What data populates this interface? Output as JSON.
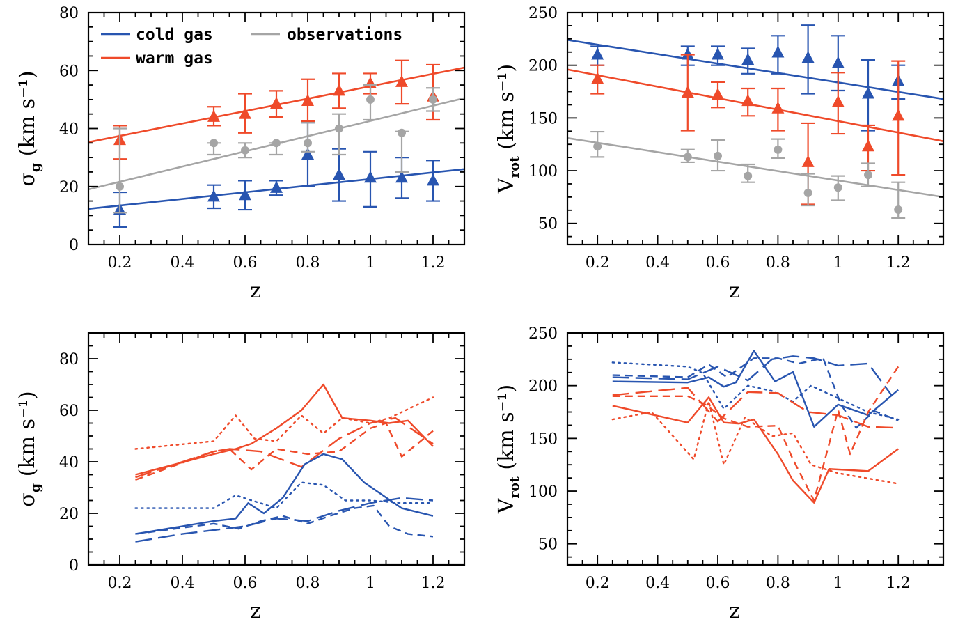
{
  "colors": {
    "cold": "#2855b0",
    "warm": "#ef4a2a",
    "obs": "#a5a5a5"
  },
  "legend": {
    "cold": "cold gas",
    "warm": "warm gas",
    "obs": "observations"
  },
  "chart_data": [
    {
      "id": "top-left",
      "type": "scatter",
      "xlabel": "z",
      "ylabel": "σ_g (km s⁻¹)",
      "xlim": [
        0.1,
        1.3
      ],
      "ylim": [
        0,
        80
      ],
      "xticks": [
        0.2,
        0.4,
        0.6,
        0.8,
        1.0,
        1.2
      ],
      "xticklabels": [
        "0.2",
        "0.4",
        "0.6",
        "0.8",
        "1",
        "1.2"
      ],
      "yticks": [
        0,
        20,
        40,
        60,
        80
      ],
      "yticklabels": [
        "0",
        "20",
        "40",
        "60",
        "80"
      ],
      "legend": true,
      "series": [
        {
          "name": "cold gas",
          "color": "cold",
          "marker": "triangle",
          "x": [
            0.2,
            0.5,
            0.6,
            0.7,
            0.8,
            0.9,
            1.0,
            1.1,
            1.2
          ],
          "y": [
            12,
            16.5,
            17,
            19.5,
            31,
            24,
            23,
            23,
            22
          ],
          "err": [
            [
              6,
              18
            ],
            [
              12.5,
              20.5
            ],
            [
              12,
              22
            ],
            [
              17,
              22
            ],
            [
              20,
              42
            ],
            [
              15,
              33
            ],
            [
              13,
              32
            ],
            [
              16,
              30
            ],
            [
              15,
              29
            ]
          ],
          "fit": [
            [
              0.1,
              12.3
            ],
            [
              1.3,
              26
            ]
          ]
        },
        {
          "name": "warm gas",
          "color": "warm",
          "marker": "triangle",
          "x": [
            0.2,
            0.5,
            0.6,
            0.7,
            0.8,
            0.9,
            1.0,
            1.1,
            1.2
          ],
          "y": [
            36,
            44,
            45,
            48.5,
            49.5,
            53,
            55.5,
            56,
            51
          ],
          "err": [
            [
              29.5,
              41
            ],
            [
              41,
              47.5
            ],
            [
              38.5,
              52
            ],
            [
              44,
              53
            ],
            [
              42.5,
              57
            ],
            [
              47,
              59
            ],
            [
              52,
              59
            ],
            [
              48.5,
              63.5
            ],
            [
              43,
              62
            ]
          ],
          "fit": [
            [
              0.1,
              35.3
            ],
            [
              1.3,
              61
            ]
          ]
        },
        {
          "name": "observations",
          "color": "obs",
          "marker": "circle",
          "x": [
            0.2,
            0.5,
            0.6,
            0.7,
            0.8,
            0.9,
            1.0,
            1.1,
            1.2
          ],
          "y": [
            20,
            35,
            32.5,
            35,
            35,
            40,
            50,
            38.5,
            50
          ],
          "err": [
            [
              11,
              40
            ],
            [
              31,
              35
            ],
            [
              30,
              35
            ],
            [
              31,
              35
            ],
            [
              32,
              42
            ],
            [
              31,
              45
            ],
            [
              43,
              55
            ],
            [
              25,
              39
            ],
            [
              46,
              54
            ]
          ],
          "fit": [
            [
              0.1,
              19
            ],
            [
              1.3,
              50.5
            ]
          ]
        }
      ]
    },
    {
      "id": "top-right",
      "type": "scatter",
      "xlabel": "z",
      "ylabel": "V_rot (km s⁻¹)",
      "xlim": [
        0.1,
        1.35
      ],
      "ylim": [
        30,
        250
      ],
      "xticks": [
        0.2,
        0.4,
        0.6,
        0.8,
        1.0,
        1.2
      ],
      "xticklabels": [
        "0.2",
        "0.4",
        "0.6",
        "0.8",
        "1",
        "1.2"
      ],
      "yticks": [
        50,
        100,
        150,
        200,
        250
      ],
      "yticklabels": [
        "50",
        "100",
        "150",
        "200",
        "250"
      ],
      "legend": false,
      "series": [
        {
          "name": "cold gas",
          "color": "cold",
          "marker": "triangle",
          "x": [
            0.2,
            0.5,
            0.6,
            0.7,
            0.8,
            0.9,
            1.0,
            1.1,
            1.2
          ],
          "y": [
            210,
            210,
            210,
            205,
            212,
            207,
            202,
            173,
            185
          ],
          "err": [
            [
              200,
              218
            ],
            [
              200,
              218
            ],
            [
              200,
              218
            ],
            [
              192,
              216
            ],
            [
              192,
              228
            ],
            [
              173,
              238
            ],
            [
              176,
              228
            ],
            [
              138,
              205
            ],
            [
              168,
              200
            ]
          ],
          "fit": [
            [
              0.1,
              224
            ],
            [
              1.35,
              168
            ]
          ]
        },
        {
          "name": "warm gas",
          "color": "warm",
          "marker": "triangle",
          "x": [
            0.2,
            0.5,
            0.6,
            0.7,
            0.8,
            0.9,
            1.0,
            1.1,
            1.2
          ],
          "y": [
            187,
            174,
            172,
            166,
            159,
            108,
            165,
            123,
            152
          ],
          "err": [
            [
              173,
              200
            ],
            [
              138,
              210
            ],
            [
              160,
              184
            ],
            [
              152,
              178
            ],
            [
              138,
              178
            ],
            [
              68,
              145
            ],
            [
              135,
              193
            ],
            [
              100,
              143
            ],
            [
              96,
              204
            ]
          ],
          "fit": [
            [
              0.1,
              196
            ],
            [
              1.35,
              128
            ]
          ]
        },
        {
          "name": "observations",
          "color": "obs",
          "marker": "circle",
          "x": [
            0.2,
            0.5,
            0.6,
            0.7,
            0.8,
            0.9,
            1.0,
            1.1,
            1.2
          ],
          "y": [
            123,
            113,
            114,
            95,
            120,
            79,
            84,
            96,
            63
          ],
          "err": [
            [
              113,
              137
            ],
            [
              108,
              120
            ],
            [
              100,
              129
            ],
            [
              89,
              106
            ],
            [
              112,
              130
            ],
            [
              67,
              97
            ],
            [
              72,
              95
            ],
            [
              85,
              107
            ],
            [
              55,
              89
            ]
          ],
          "fit": [
            [
              0.1,
              131
            ],
            [
              1.35,
              75
            ]
          ]
        }
      ]
    },
    {
      "id": "bottom-left",
      "type": "line",
      "xlabel": "z",
      "ylabel": "σ_g (km s⁻¹)",
      "xlim": [
        0.1,
        1.3
      ],
      "ylim": [
        0,
        90
      ],
      "xticks": [
        0.2,
        0.4,
        0.6,
        0.8,
        1.0,
        1.2
      ],
      "xticklabels": [
        "0.2",
        "0.4",
        "0.6",
        "0.8",
        "1",
        "1.2"
      ],
      "yticks": [
        0,
        20,
        40,
        60,
        80
      ],
      "yticklabels": [
        "0",
        "20",
        "40",
        "60",
        "80"
      ],
      "legend": false,
      "series": [
        {
          "color": "warm",
          "dash": "solid",
          "x": [
            0.25,
            0.5,
            0.57,
            0.62,
            0.7,
            0.78,
            0.85,
            0.91,
            1.0,
            1.06,
            1.12,
            1.2
          ],
          "y": [
            35,
            43,
            45,
            47,
            53,
            60,
            70,
            57,
            56,
            55,
            56,
            46
          ]
        },
        {
          "color": "warm",
          "dash": "dotted",
          "x": [
            0.25,
            0.5,
            0.57,
            0.63,
            0.7,
            0.78,
            0.85,
            0.91,
            1.0,
            1.06,
            1.2
          ],
          "y": [
            45,
            48,
            58,
            49,
            48,
            58,
            51,
            57,
            55,
            57,
            65
          ]
        },
        {
          "color": "warm",
          "dash": "short",
          "x": [
            0.25,
            0.5,
            0.55,
            0.62,
            0.7,
            0.8,
            0.9,
            1.0,
            1.05,
            1.1,
            1.2
          ],
          "y": [
            33,
            44,
            45,
            37,
            45,
            43,
            44,
            53,
            55,
            42,
            52
          ]
        },
        {
          "color": "warm",
          "dash": "long",
          "x": [
            0.25,
            0.5,
            0.55,
            0.65,
            0.78,
            0.9,
            1.0,
            1.08,
            1.2
          ],
          "y": [
            34,
            44,
            45,
            44,
            38,
            49,
            55,
            57,
            47
          ]
        },
        {
          "color": "cold",
          "dash": "solid",
          "x": [
            0.25,
            0.5,
            0.57,
            0.61,
            0.66,
            0.72,
            0.79,
            0.85,
            0.91,
            0.98,
            1.1,
            1.2
          ],
          "y": [
            12,
            17,
            18,
            24,
            20,
            26,
            39,
            43,
            41,
            32,
            22,
            19
          ]
        },
        {
          "color": "cold",
          "dash": "dotted",
          "x": [
            0.25,
            0.5,
            0.57,
            0.7,
            0.78,
            0.85,
            0.92,
            1.0,
            1.1,
            1.2
          ],
          "y": [
            22,
            22,
            27,
            22,
            32,
            31,
            25,
            25,
            24,
            24
          ]
        },
        {
          "color": "cold",
          "dash": "short",
          "x": [
            0.25,
            0.5,
            0.58,
            0.65,
            0.72,
            0.8,
            0.87,
            0.95,
            1.01,
            1.06,
            1.12,
            1.2
          ],
          "y": [
            12,
            16,
            14,
            17,
            19,
            16,
            19,
            22,
            23,
            15,
            12,
            11
          ]
        },
        {
          "color": "cold",
          "dash": "long",
          "x": [
            0.25,
            0.4,
            0.6,
            0.7,
            0.8,
            0.9,
            1.0,
            1.1,
            1.2
          ],
          "y": [
            9,
            12,
            15,
            18,
            17,
            21,
            24,
            26,
            25
          ]
        }
      ]
    },
    {
      "id": "bottom-right",
      "type": "line",
      "xlabel": "z",
      "ylabel": "V_rot (km s⁻¹)",
      "xlim": [
        0.1,
        1.35
      ],
      "ylim": [
        30,
        250
      ],
      "xticks": [
        0.2,
        0.4,
        0.6,
        0.8,
        1.0,
        1.2
      ],
      "xticklabels": [
        "0.2",
        "0.4",
        "0.6",
        "0.8",
        "1",
        "1.2"
      ],
      "yticks": [
        50,
        100,
        150,
        200,
        250
      ],
      "yticklabels": [
        "50",
        "100",
        "150",
        "200",
        "250"
      ],
      "legend": false,
      "series": [
        {
          "color": "cold",
          "dash": "solid",
          "x": [
            0.25,
            0.5,
            0.57,
            0.62,
            0.66,
            0.72,
            0.79,
            0.85,
            0.92,
            1.0,
            1.1,
            1.2
          ],
          "y": [
            204,
            203,
            208,
            199,
            203,
            233,
            204,
            213,
            161,
            182,
            172,
            196
          ]
        },
        {
          "color": "cold",
          "dash": "dotted",
          "x": [
            0.25,
            0.5,
            0.55,
            0.62,
            0.7,
            0.78,
            0.85,
            0.91,
            1.0,
            1.1,
            1.2
          ],
          "y": [
            222,
            218,
            212,
            178,
            200,
            195,
            185,
            200,
            188,
            175,
            168
          ]
        },
        {
          "color": "cold",
          "dash": "short",
          "x": [
            0.25,
            0.5,
            0.57,
            0.63,
            0.72,
            0.8,
            0.87,
            0.95,
            1.01,
            1.06,
            1.12,
            1.2
          ],
          "y": [
            210,
            208,
            220,
            208,
            226,
            226,
            221,
            226,
            182,
            160,
            176,
            167
          ]
        },
        {
          "color": "cold",
          "dash": "long",
          "x": [
            0.25,
            0.5,
            0.6,
            0.7,
            0.78,
            0.85,
            0.92,
            1.0,
            1.1,
            1.18
          ],
          "y": [
            208,
            206,
            218,
            205,
            225,
            228,
            226,
            219,
            221,
            190
          ]
        },
        {
          "color": "warm",
          "dash": "solid",
          "x": [
            0.25,
            0.5,
            0.57,
            0.62,
            0.67,
            0.72,
            0.8,
            0.85,
            0.92,
            0.97,
            1.1,
            1.2
          ],
          "y": [
            181,
            165,
            189,
            165,
            164,
            168,
            135,
            110,
            89,
            121,
            119,
            140
          ]
        },
        {
          "color": "warm",
          "dash": "dotted",
          "x": [
            0.25,
            0.38,
            0.52,
            0.57,
            0.62,
            0.69,
            0.78,
            0.85,
            0.91,
            1.0,
            1.2
          ],
          "y": [
            168,
            175,
            130,
            185,
            125,
            170,
            152,
            155,
            125,
            117,
            107
          ]
        },
        {
          "color": "warm",
          "dash": "short",
          "x": [
            0.25,
            0.5,
            0.56,
            0.62,
            0.7,
            0.8,
            0.85,
            0.92,
            1.0,
            1.04,
            1.1,
            1.2
          ],
          "y": [
            190,
            190,
            182,
            169,
            161,
            162,
            130,
            91,
            177,
            135,
            175,
            218
          ]
        },
        {
          "color": "warm",
          "dash": "long",
          "x": [
            0.25,
            0.5,
            0.6,
            0.7,
            0.8,
            0.9,
            1.0,
            1.1,
            1.2
          ],
          "y": [
            191,
            198,
            166,
            194,
            193,
            175,
            172,
            161,
            160
          ]
        }
      ]
    }
  ]
}
